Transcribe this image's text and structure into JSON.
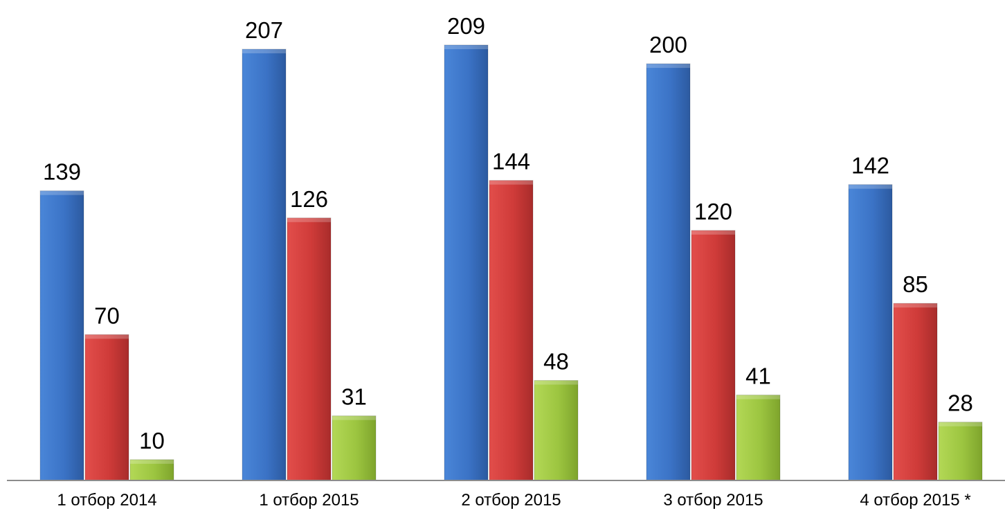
{
  "chart_data": {
    "type": "bar",
    "title": "",
    "xlabel": "",
    "ylabel": "",
    "categories": [
      "1 отбор 2014",
      "1 отбор 2015",
      "2 отбор 2015",
      "3 отбор 2015",
      "4 отбор 2015 *"
    ],
    "series": [
      {
        "values": [
          139,
          207,
          209,
          200,
          142
        ],
        "color": "#3b73c6"
      },
      {
        "values": [
          70,
          126,
          144,
          120,
          85
        ],
        "color": "#cf3b39"
      },
      {
        "values": [
          10,
          31,
          48,
          41,
          28
        ],
        "color": "#9cc540"
      }
    ],
    "ylim": [
      0,
      209
    ],
    "grid": false,
    "legend": "none",
    "data_labels": true
  }
}
